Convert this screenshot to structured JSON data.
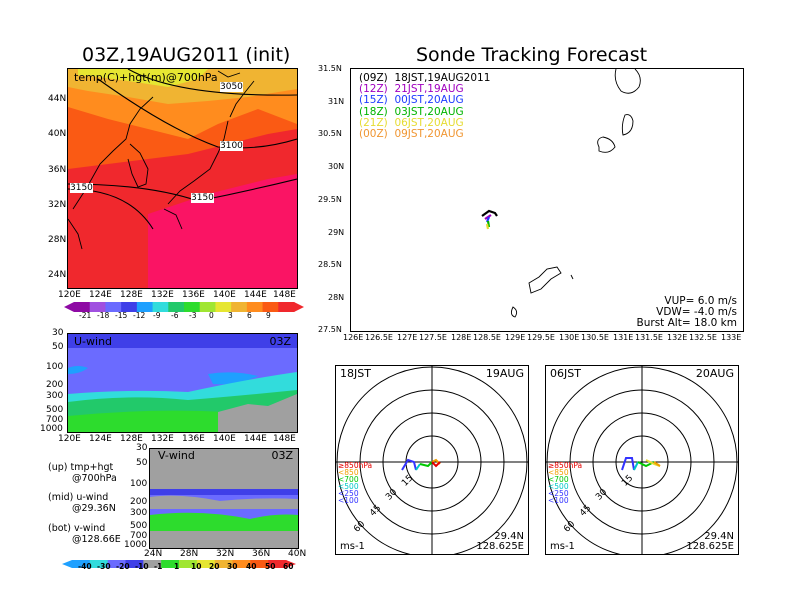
{
  "colors": {
    "z1": "#8e0aa4",
    "z2": "#a050e0",
    "z3": "#6b6bff",
    "z4": "#3f3fe8",
    "z5": "#1ea0ff",
    "z6": "#32dcdc",
    "z7": "#22c96a",
    "z8": "#2ddc2d",
    "z9": "#a0e632",
    "z10": "#e6e632",
    "z11": "#f0b432",
    "z12": "#ff8c1e",
    "z13": "#fa5a14",
    "z14": "#f0282d",
    "z15": "#fa1464",
    "gray": "#a0a0a0",
    "dark": "#000000",
    "t09z": "#000000",
    "t12z": "#a000c0",
    "t15z": "#1e3cff",
    "t18z": "#00b400",
    "t21z": "#e6dc32",
    "t00z": "#f09632",
    "p850": "#e60000",
    "p700": "#f0a000",
    "p500": "#00c800",
    "p250": "#00c8c8",
    "p100": "#3232ff"
  },
  "map_panel": {
    "title": "03Z,19AUG2011 (init)",
    "subtitle": "temp(C)+hgt(m)@700hPa",
    "lat_ticks": [
      "44N",
      "40N",
      "36N",
      "32N",
      "28N",
      "24N"
    ],
    "lon_ticks": [
      "120E",
      "124E",
      "128E",
      "132E",
      "136E",
      "140E",
      "144E",
      "148E"
    ],
    "contour_labels": [
      "3050",
      "3100",
      "3150",
      "3150"
    ],
    "colorbar_labels": [
      "-21",
      "-18",
      "-15",
      "-12",
      "-9",
      "-6",
      "-3",
      "0",
      "3",
      "6",
      "9"
    ]
  },
  "uwind_panel": {
    "label": "U-wind",
    "time": "03Z",
    "p_ticks": [
      "30",
      "50",
      "100",
      "200",
      "300",
      "500",
      "700",
      "1000"
    ],
    "lon_ticks": [
      "120E",
      "124E",
      "128E",
      "132E",
      "136E",
      "140E",
      "144E",
      "148E"
    ]
  },
  "vwind_panel": {
    "label": "V-wind",
    "time": "03Z",
    "p_ticks": [
      "30",
      "50",
      "100",
      "200",
      "300",
      "500",
      "700",
      "1000"
    ],
    "lat_ticks": [
      "24N",
      "28N",
      "32N",
      "36N",
      "40N"
    ]
  },
  "notes": {
    "up_1": "(up) tmp+hgt",
    "up_2": "@700hPa",
    "mid_1": "(mid) u-wind",
    "mid_2": "@29.36N",
    "bot_1": "(bot) v-wind",
    "bot_2": "@128.66E"
  },
  "wind_colorbar_labels": [
    "-40",
    "-30",
    "-20",
    "-10",
    "-1",
    "1",
    "10",
    "20",
    "30",
    "40",
    "50",
    "60"
  ],
  "track_panel": {
    "title": "Sonde Tracking Forecast",
    "lat_ticks": [
      "31.5N",
      "31N",
      "30.5N",
      "30N",
      "29.5N",
      "29N",
      "28.5N",
      "28N",
      "27.5N"
    ],
    "lon_ticks": [
      "126E",
      "126.5E",
      "127E",
      "127.5E",
      "128E",
      "128.5E",
      "129E",
      "129.5E",
      "130E",
      "130.5E",
      "131E",
      "131.5E",
      "132E",
      "132.5E",
      "133E"
    ],
    "legend": [
      {
        "code": "(09Z)",
        "time": "18JST,19AUG2011"
      },
      {
        "code": "(12Z)",
        "time": "21JST,19AUG"
      },
      {
        "code": "(15Z)",
        "time": "00JST,20AUG"
      },
      {
        "code": "(18Z)",
        "time": "03JST,20AUG"
      },
      {
        "code": "(21Z)",
        "time": "06JST,20AUG"
      },
      {
        "code": "(00Z)",
        "time": "09JST,20AUG"
      }
    ],
    "params": {
      "vup": "VUP=  6.0  m/s",
      "vdw": "VDW= -4.0  m/s",
      "burst": "Burst Alt=  18.0  km"
    }
  },
  "polar_left": {
    "time": "18JST",
    "date": "19AUG",
    "ring_labels": [
      "15",
      "30",
      "45",
      "60"
    ],
    "unit": "ms-1",
    "lat": "29.4N",
    "lon": "128.625E"
  },
  "polar_right": {
    "time": "06JST",
    "date": "20AUG",
    "ring_labels": [
      "15",
      "30",
      "45",
      "60"
    ],
    "unit": "ms-1",
    "lat": "29.4N",
    "lon": "128.625E"
  },
  "pressure_legend": [
    "≥850hPa",
    "<850",
    "<700",
    "<500",
    "<250",
    "<100"
  ]
}
